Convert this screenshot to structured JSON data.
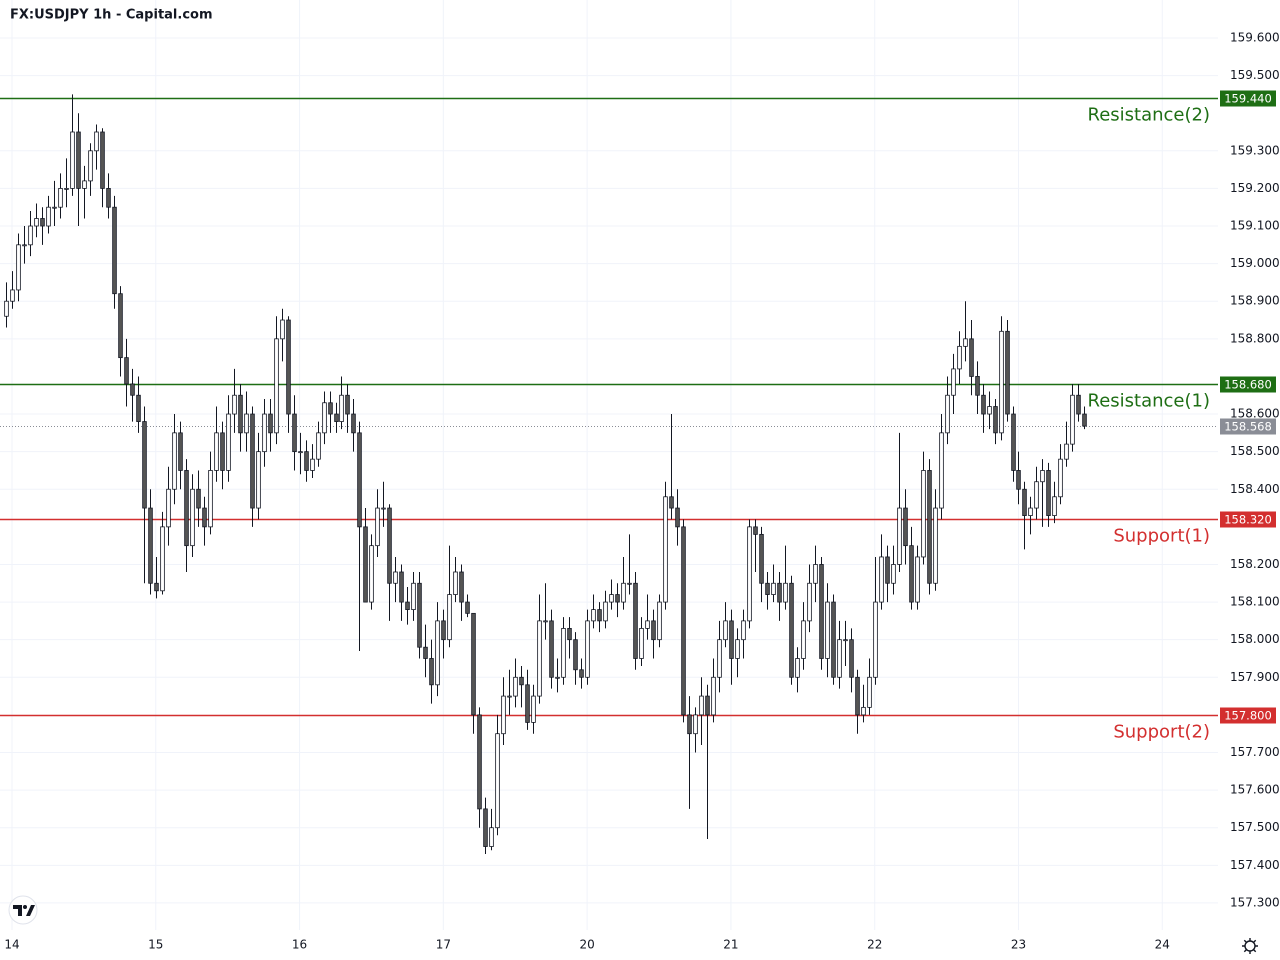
{
  "chart_data": {
    "type": "candlestick",
    "title": "FX:USDJPY 1h - Capital.com",
    "up_color": "#ffffff",
    "down_color": "#555555",
    "wick_color": "#131722",
    "grid": true,
    "xlim": [
      -2,
      201.3
    ],
    "xticks": [
      {
        "value": 0,
        "label": "14"
      },
      {
        "value": 24,
        "label": "15"
      },
      {
        "value": 48,
        "label": "16"
      },
      {
        "value": 72,
        "label": "17"
      },
      {
        "value": 96,
        "label": "20"
      },
      {
        "value": 120,
        "label": "21"
      },
      {
        "value": 144,
        "label": "22"
      },
      {
        "value": 168,
        "label": "23"
      },
      {
        "value": 192,
        "label": "24"
      }
    ],
    "ylim": [
      157.228,
      159.701
    ],
    "yticks": [
      {
        "value": 157.3,
        "label": "157.300"
      },
      {
        "value": 157.4,
        "label": "157.400"
      },
      {
        "value": 157.5,
        "label": "157.500"
      },
      {
        "value": 157.6,
        "label": "157.600"
      },
      {
        "value": 157.7,
        "label": "157.700"
      },
      {
        "value": 157.9,
        "label": "157.900"
      },
      {
        "value": 158.0,
        "label": "158.000"
      },
      {
        "value": 158.1,
        "label": "158.100"
      },
      {
        "value": 158.2,
        "label": "158.200"
      },
      {
        "value": 158.4,
        "label": "158.400"
      },
      {
        "value": 158.5,
        "label": "158.500"
      },
      {
        "value": 158.6,
        "label": "158.600"
      },
      {
        "value": 158.8,
        "label": "158.800"
      },
      {
        "value": 158.9,
        "label": "158.900"
      },
      {
        "value": 159.0,
        "label": "159.000"
      },
      {
        "value": 159.1,
        "label": "159.100"
      },
      {
        "value": 159.2,
        "label": "159.200"
      },
      {
        "value": 159.3,
        "label": "159.300"
      },
      {
        "value": 159.5,
        "label": "159.500"
      },
      {
        "value": 159.6,
        "label": "159.600"
      }
    ],
    "levels": [
      {
        "name": "Resistance(2)",
        "value": 159.44,
        "label": "159.440",
        "color": "#1e6e14"
      },
      {
        "name": "Resistance(1)",
        "value": 158.68,
        "label": "158.680",
        "color": "#1e6e14"
      },
      {
        "name": "Support(1)",
        "value": 158.32,
        "label": "158.320",
        "color": "#d32f2f"
      },
      {
        "name": "Support(2)",
        "value": 157.8,
        "label": "157.800",
        "color": "#d32f2f"
      }
    ],
    "last_price": {
      "value": 158.568,
      "label": "158.568",
      "color": "#8a8d96"
    },
    "x": [
      -1,
      0,
      1,
      2,
      3,
      4,
      5,
      6,
      7,
      8,
      9,
      10,
      11,
      12,
      13,
      14,
      15,
      16,
      17,
      18,
      19,
      20,
      21,
      22,
      23,
      24,
      25,
      26,
      27,
      28,
      29,
      30,
      31,
      32,
      33,
      34,
      35,
      36,
      37,
      38,
      39,
      40,
      41,
      42,
      43,
      44,
      45,
      46,
      47,
      48,
      49,
      50,
      51,
      52,
      53,
      54,
      55,
      56,
      57,
      58,
      59,
      60,
      61,
      62,
      63,
      64,
      65,
      66,
      67,
      68,
      69,
      70,
      71,
      72,
      73,
      74,
      75,
      76,
      77,
      78,
      79,
      80,
      81,
      82,
      83,
      84,
      85,
      86,
      87,
      88,
      89,
      90,
      91,
      92,
      93,
      94,
      95,
      96,
      97,
      98,
      99,
      100,
      101,
      102,
      103,
      104,
      105,
      106,
      107,
      108,
      109,
      110,
      111,
      112,
      113,
      114,
      115,
      116,
      117,
      118,
      119,
      120,
      121,
      122,
      123,
      124,
      125,
      126,
      127,
      128,
      129,
      130,
      131,
      132,
      133,
      134,
      135,
      136,
      137,
      138,
      139,
      140,
      141,
      142,
      143,
      144,
      145,
      146,
      147,
      148,
      149,
      150,
      151,
      152,
      153,
      154,
      155,
      156,
      157,
      158,
      159,
      160,
      161,
      162,
      163,
      164,
      165,
      166,
      167,
      168,
      169,
      170,
      171,
      172,
      173,
      174,
      175,
      176,
      177,
      178,
      179
    ],
    "ohlc": [
      [
        158.86,
        158.95,
        158.83,
        158.9
      ],
      [
        158.9,
        158.98,
        158.88,
        158.93
      ],
      [
        158.93,
        159.08,
        158.9,
        159.05
      ],
      [
        159.05,
        159.1,
        159.0,
        159.05
      ],
      [
        159.05,
        159.14,
        159.02,
        159.1
      ],
      [
        159.1,
        159.16,
        159.07,
        159.12
      ],
      [
        159.12,
        159.15,
        159.05,
        159.1
      ],
      [
        159.1,
        159.18,
        159.08,
        159.15
      ],
      [
        159.15,
        159.22,
        159.1,
        159.15
      ],
      [
        159.15,
        159.24,
        159.12,
        159.2
      ],
      [
        159.2,
        159.28,
        159.15,
        159.2
      ],
      [
        159.2,
        159.45,
        159.18,
        159.35
      ],
      [
        159.35,
        159.4,
        159.1,
        159.2
      ],
      [
        159.2,
        159.26,
        159.12,
        159.22
      ],
      [
        159.22,
        159.32,
        159.18,
        159.3
      ],
      [
        159.3,
        159.37,
        159.25,
        159.35
      ],
      [
        159.35,
        159.36,
        159.15,
        159.2
      ],
      [
        159.2,
        159.24,
        159.12,
        159.15
      ],
      [
        159.15,
        159.18,
        158.88,
        158.92
      ],
      [
        158.92,
        158.94,
        158.7,
        158.75
      ],
      [
        158.75,
        158.8,
        158.62,
        158.68
      ],
      [
        158.68,
        158.72,
        158.58,
        158.65
      ],
      [
        158.65,
        158.7,
        158.55,
        158.58
      ],
      [
        158.58,
        158.62,
        158.15,
        158.35
      ],
      [
        158.35,
        158.4,
        158.12,
        158.15
      ],
      [
        158.15,
        158.22,
        158.11,
        158.13
      ],
      [
        158.13,
        158.34,
        158.12,
        158.3
      ],
      [
        158.3,
        158.46,
        158.25,
        158.4
      ],
      [
        158.4,
        158.6,
        158.36,
        158.55
      ],
      [
        158.55,
        158.58,
        158.4,
        158.45
      ],
      [
        158.45,
        158.48,
        158.18,
        158.25
      ],
      [
        158.25,
        158.44,
        158.22,
        158.4
      ],
      [
        158.4,
        158.45,
        158.3,
        158.35
      ],
      [
        158.35,
        158.38,
        158.25,
        158.3
      ],
      [
        158.3,
        158.5,
        158.28,
        158.45
      ],
      [
        158.45,
        158.62,
        158.42,
        158.55
      ],
      [
        158.55,
        158.58,
        158.4,
        158.45
      ],
      [
        158.45,
        158.65,
        158.42,
        158.6
      ],
      [
        158.6,
        158.72,
        158.55,
        158.65
      ],
      [
        158.65,
        158.68,
        158.5,
        158.55
      ],
      [
        158.55,
        158.66,
        158.5,
        158.6
      ],
      [
        158.6,
        158.62,
        158.3,
        158.35
      ],
      [
        158.35,
        158.55,
        158.32,
        158.5
      ],
      [
        158.5,
        158.64,
        158.46,
        158.6
      ],
      [
        158.6,
        158.64,
        158.5,
        158.55
      ],
      [
        158.55,
        158.86,
        158.52,
        158.8
      ],
      [
        158.8,
        158.88,
        158.74,
        158.85
      ],
      [
        158.85,
        158.86,
        158.55,
        158.6
      ],
      [
        158.6,
        158.65,
        158.45,
        158.5
      ],
      [
        158.5,
        158.55,
        158.44,
        158.5
      ],
      [
        158.5,
        158.53,
        158.42,
        158.45
      ],
      [
        158.45,
        158.52,
        158.43,
        158.48
      ],
      [
        158.48,
        158.58,
        158.46,
        158.55
      ],
      [
        158.55,
        158.66,
        158.52,
        158.63
      ],
      [
        158.63,
        158.66,
        158.55,
        158.6
      ],
      [
        158.6,
        158.63,
        158.55,
        158.58
      ],
      [
        158.58,
        158.7,
        158.56,
        158.65
      ],
      [
        158.65,
        158.68,
        158.55,
        158.6
      ],
      [
        158.6,
        158.64,
        158.5,
        158.55
      ],
      [
        158.55,
        158.58,
        157.97,
        158.3
      ],
      [
        158.3,
        158.35,
        158.1,
        158.1
      ],
      [
        158.1,
        158.28,
        158.08,
        158.25
      ],
      [
        158.25,
        158.4,
        158.22,
        158.35
      ],
      [
        158.35,
        158.42,
        158.3,
        158.35
      ],
      [
        158.35,
        158.36,
        158.05,
        158.15
      ],
      [
        158.15,
        158.22,
        158.1,
        158.18
      ],
      [
        158.18,
        158.2,
        158.05,
        158.1
      ],
      [
        158.1,
        158.14,
        158.04,
        158.08
      ],
      [
        158.08,
        158.18,
        158.05,
        158.15
      ],
      [
        158.15,
        158.18,
        157.95,
        157.98
      ],
      [
        157.98,
        158.04,
        157.9,
        157.95
      ],
      [
        157.95,
        158.0,
        157.83,
        157.88
      ],
      [
        157.88,
        158.1,
        157.85,
        158.05
      ],
      [
        158.05,
        158.08,
        157.95,
        158.0
      ],
      [
        158.0,
        158.25,
        157.98,
        158.12
      ],
      [
        158.12,
        158.22,
        158.1,
        158.18
      ],
      [
        158.18,
        158.2,
        158.05,
        158.1
      ],
      [
        158.1,
        158.12,
        158.06,
        158.07
      ],
      [
        158.07,
        158.07,
        157.75,
        157.8
      ],
      [
        157.8,
        157.82,
        157.5,
        157.55
      ],
      [
        157.55,
        157.58,
        157.43,
        157.45
      ],
      [
        157.45,
        157.55,
        157.44,
        157.5
      ],
      [
        157.5,
        157.8,
        157.48,
        157.75
      ],
      [
        157.75,
        157.9,
        157.72,
        157.85
      ],
      [
        157.85,
        157.92,
        157.8,
        157.85
      ],
      [
        157.85,
        157.95,
        157.82,
        157.9
      ],
      [
        157.9,
        157.93,
        157.82,
        157.88
      ],
      [
        157.88,
        157.92,
        157.76,
        157.78
      ],
      [
        157.78,
        157.88,
        157.75,
        157.85
      ],
      [
        157.85,
        158.12,
        157.83,
        158.05
      ],
      [
        158.05,
        158.15,
        158.0,
        158.05
      ],
      [
        158.05,
        158.08,
        157.87,
        157.9
      ],
      [
        157.9,
        157.95,
        157.86,
        157.9
      ],
      [
        157.9,
        158.06,
        157.88,
        158.03
      ],
      [
        158.03,
        158.06,
        157.95,
        158.0
      ],
      [
        158.0,
        158.02,
        157.88,
        157.92
      ],
      [
        157.92,
        157.95,
        157.87,
        157.9
      ],
      [
        157.9,
        158.08,
        157.88,
        158.05
      ],
      [
        158.05,
        158.12,
        158.03,
        158.08
      ],
      [
        158.08,
        158.1,
        158.02,
        158.05
      ],
      [
        158.05,
        158.13,
        158.03,
        158.1
      ],
      [
        158.1,
        158.16,
        158.08,
        158.12
      ],
      [
        158.12,
        158.15,
        158.06,
        158.1
      ],
      [
        158.1,
        158.22,
        158.08,
        158.15
      ],
      [
        158.15,
        158.28,
        158.12,
        158.15
      ],
      [
        158.15,
        158.18,
        157.92,
        157.95
      ],
      [
        157.95,
        158.06,
        157.93,
        158.03
      ],
      [
        158.03,
        158.12,
        158.0,
        158.05
      ],
      [
        158.05,
        158.08,
        157.95,
        158.0
      ],
      [
        158.0,
        158.12,
        157.98,
        158.1
      ],
      [
        158.1,
        158.42,
        158.08,
        158.38
      ],
      [
        158.38,
        158.6,
        158.32,
        158.35
      ],
      [
        158.35,
        158.4,
        158.25,
        158.3
      ],
      [
        158.3,
        158.32,
        157.78,
        157.8
      ],
      [
        157.8,
        157.85,
        157.55,
        157.75
      ],
      [
        157.75,
        157.82,
        157.7,
        157.8
      ],
      [
        157.8,
        157.9,
        157.72,
        157.85
      ],
      [
        157.85,
        157.88,
        157.47,
        157.8
      ],
      [
        157.8,
        157.95,
        157.78,
        157.9
      ],
      [
        157.9,
        158.05,
        157.86,
        158.0
      ],
      [
        158.0,
        158.1,
        157.98,
        158.05
      ],
      [
        158.05,
        158.08,
        157.88,
        157.95
      ],
      [
        157.95,
        158.03,
        157.9,
        158.0
      ],
      [
        158.0,
        158.08,
        157.95,
        158.05
      ],
      [
        158.05,
        158.32,
        158.03,
        158.3
      ],
      [
        158.3,
        158.32,
        158.18,
        158.28
      ],
      [
        158.28,
        158.3,
        158.1,
        158.15
      ],
      [
        158.15,
        158.18,
        158.08,
        158.12
      ],
      [
        158.12,
        158.2,
        158.1,
        158.15
      ],
      [
        158.15,
        158.18,
        158.05,
        158.1
      ],
      [
        158.1,
        158.25,
        158.08,
        158.15
      ],
      [
        158.15,
        158.17,
        157.88,
        157.9
      ],
      [
        157.9,
        157.98,
        157.86,
        157.95
      ],
      [
        157.95,
        158.1,
        157.92,
        158.05
      ],
      [
        158.05,
        158.2,
        158.02,
        158.15
      ],
      [
        158.15,
        158.25,
        158.1,
        158.2
      ],
      [
        158.2,
        158.22,
        157.92,
        157.95
      ],
      [
        157.95,
        158.15,
        157.9,
        158.1
      ],
      [
        158.1,
        158.12,
        157.88,
        157.9
      ],
      [
        157.9,
        158.05,
        157.87,
        158.0
      ],
      [
        158.0,
        158.05,
        157.93,
        158.0
      ],
      [
        158.0,
        158.03,
        157.86,
        157.9
      ],
      [
        157.9,
        157.92,
        157.75,
        157.8
      ],
      [
        157.8,
        157.88,
        157.78,
        157.82
      ],
      [
        157.82,
        157.95,
        157.8,
        157.9
      ],
      [
        157.9,
        158.22,
        157.88,
        158.1
      ],
      [
        158.1,
        158.28,
        158.08,
        158.22
      ],
      [
        158.22,
        158.25,
        158.1,
        158.15
      ],
      [
        158.15,
        158.25,
        158.12,
        158.2
      ],
      [
        158.2,
        158.55,
        158.18,
        158.35
      ],
      [
        158.35,
        158.4,
        158.2,
        158.25
      ],
      [
        158.25,
        158.3,
        158.08,
        158.1
      ],
      [
        158.1,
        158.25,
        158.08,
        158.22
      ],
      [
        158.22,
        158.5,
        158.2,
        158.45
      ],
      [
        158.45,
        158.48,
        158.12,
        158.15
      ],
      [
        158.15,
        158.4,
        158.13,
        158.35
      ],
      [
        158.35,
        158.6,
        158.32,
        158.55
      ],
      [
        158.55,
        158.7,
        158.52,
        158.65
      ],
      [
        158.65,
        158.76,
        158.6,
        158.72
      ],
      [
        158.72,
        158.82,
        158.68,
        158.78
      ],
      [
        158.78,
        158.9,
        158.74,
        158.8
      ],
      [
        158.8,
        158.85,
        158.65,
        158.7
      ],
      [
        158.7,
        158.74,
        158.6,
        158.65
      ],
      [
        158.65,
        158.68,
        158.55,
        158.6
      ],
      [
        158.6,
        158.66,
        158.56,
        158.62
      ],
      [
        158.62,
        158.64,
        158.52,
        158.55
      ],
      [
        158.55,
        158.86,
        158.53,
        158.82
      ],
      [
        158.82,
        158.85,
        158.58,
        158.6
      ],
      [
        158.6,
        158.62,
        158.42,
        158.45
      ],
      [
        158.45,
        158.5,
        158.36,
        158.4
      ],
      [
        158.4,
        158.42,
        158.24,
        158.33
      ],
      [
        158.33,
        158.38,
        158.28,
        158.35
      ],
      [
        158.35,
        158.46,
        158.32,
        158.42
      ],
      [
        158.42,
        158.48,
        158.3,
        158.45
      ],
      [
        158.45,
        158.47,
        158.3,
        158.33
      ],
      [
        158.33,
        158.42,
        158.31,
        158.38
      ],
      [
        158.38,
        158.52,
        158.36,
        158.48
      ],
      [
        158.48,
        158.58,
        158.46,
        158.52
      ],
      [
        158.52,
        158.68,
        158.5,
        158.65
      ],
      [
        158.65,
        158.68,
        158.58,
        158.6
      ],
      [
        158.6,
        158.62,
        158.56,
        158.568
      ]
    ]
  }
}
